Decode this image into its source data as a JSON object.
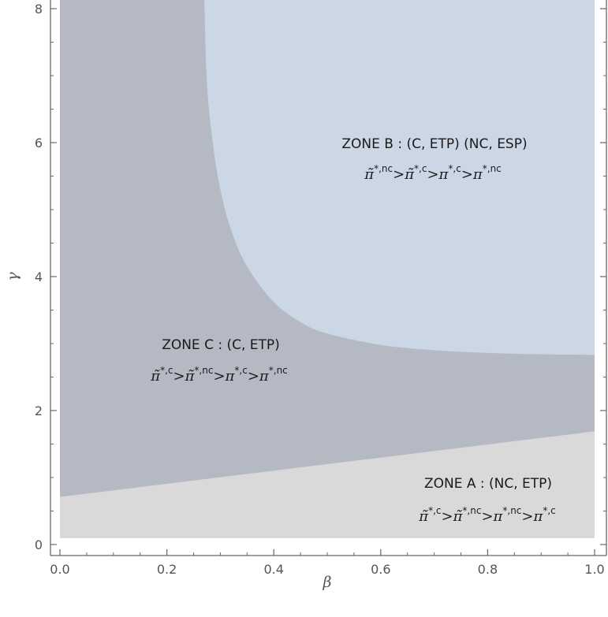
{
  "chart_data": {
    "type": "area",
    "xlabel": "β",
    "ylabel": "γ",
    "xlim": [
      0,
      1
    ],
    "ylim": [
      0,
      8
    ],
    "x_ticks": [
      "0.0",
      "0.2",
      "0.4",
      "0.6",
      "0.8",
      "1.0"
    ],
    "y_ticks": [
      "0",
      "2",
      "4",
      "6",
      "8"
    ],
    "colors": {
      "zone_a": "#d9d9d9",
      "zone_b": "#ccd7e6",
      "zone_c": "#b4b9c4",
      "axis": "#666666"
    },
    "boundaries": {
      "zone_a_upper_line": {
        "x": [
          0,
          1
        ],
        "y": [
          0.71,
          1.69
        ]
      },
      "zone_b_lower_curve": {
        "x": [
          0.27,
          0.275,
          0.285,
          0.3,
          0.32,
          0.35,
          0.4,
          0.45,
          0.5,
          0.6,
          0.7,
          0.8,
          0.9,
          1.0
        ],
        "y": [
          8.1,
          6.9,
          6.05,
          5.3,
          4.7,
          4.15,
          3.62,
          3.32,
          3.15,
          2.98,
          2.9,
          2.86,
          2.84,
          2.83
        ]
      }
    },
    "zones": [
      {
        "title": "ZONE B : (C, ETP) (NC, ESP)",
        "ineq": [
          {
            "sym": "π̃",
            "sup": "*,nc"
          },
          {
            "sym": "π̃",
            "sup": "*,c"
          },
          {
            "sym": "π",
            "sup": "*,c"
          },
          {
            "sym": "π",
            "sup": "*,nc"
          }
        ]
      },
      {
        "title": "ZONE C : (C, ETP)",
        "ineq": [
          {
            "sym": "π̃",
            "sup": "*,c"
          },
          {
            "sym": "π̃",
            "sup": "*,nc"
          },
          {
            "sym": "π",
            "sup": "*,c"
          },
          {
            "sym": "π",
            "sup": "*,nc"
          }
        ]
      },
      {
        "title": "ZONE A : (NC, ETP)",
        "ineq": [
          {
            "sym": "π̃",
            "sup": "*,c"
          },
          {
            "sym": "π̃",
            "sup": "*,nc"
          },
          {
            "sym": "π",
            "sup": "*,nc"
          },
          {
            "sym": "π",
            "sup": "*,c"
          }
        ]
      }
    ]
  }
}
